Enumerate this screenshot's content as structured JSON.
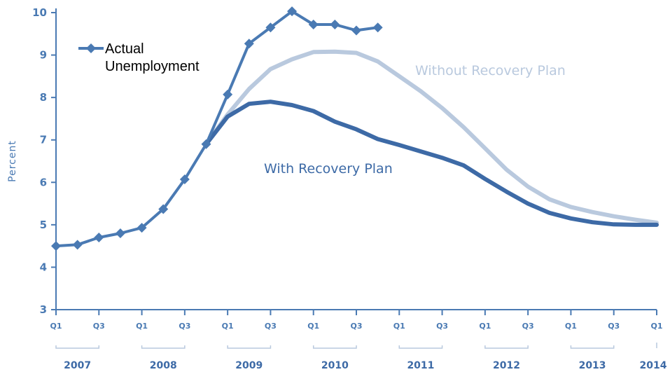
{
  "chart_data": {
    "type": "line",
    "ylabel": "Percent",
    "xlabel": "",
    "ylim": [
      3,
      10
    ],
    "yticks": [
      3,
      4,
      5,
      6,
      7,
      8,
      9,
      10
    ],
    "grid": false,
    "quarter_ticks": [
      "Q1",
      "Q3",
      "Q1",
      "Q3",
      "Q1",
      "Q3",
      "Q1",
      "Q3",
      "Q1",
      "Q3",
      "Q1",
      "Q3",
      "Q1",
      "Q3",
      "Q1"
    ],
    "years": [
      "2007",
      "2008",
      "2009",
      "2010",
      "2011",
      "2012",
      "2013",
      "2014"
    ],
    "legend": {
      "label_line1": "Actual",
      "label_line2": "Unemployment",
      "position": "top-left"
    },
    "annotations": {
      "without": "Without Recovery Plan",
      "with": "With Recovery Plan"
    },
    "series": [
      {
        "name": "Actual Unemployment",
        "color": "#4a7ab3",
        "marker": "diamond",
        "x": [
          2007.0,
          2007.25,
          2007.5,
          2007.75,
          2008.0,
          2008.25,
          2008.5,
          2008.75,
          2009.0,
          2009.25,
          2009.5,
          2009.75,
          2010.0,
          2010.25,
          2010.5,
          2010.75
        ],
        "values": [
          4.5,
          4.53,
          4.7,
          4.8,
          4.93,
          5.37,
          6.07,
          6.9,
          8.07,
          9.27,
          9.65,
          10.03,
          9.72,
          9.72,
          9.58,
          9.65
        ]
      },
      {
        "name": "Without Recovery Plan",
        "color": "#b9c9de",
        "x": [
          2008.75,
          2009.0,
          2009.25,
          2009.5,
          2009.75,
          2010.0,
          2010.25,
          2010.5,
          2010.75,
          2011.0,
          2011.25,
          2011.5,
          2011.75,
          2012.0,
          2012.25,
          2012.5,
          2012.75,
          2013.0,
          2013.25,
          2013.5,
          2013.75,
          2014.0
        ],
        "values": [
          6.9,
          7.6,
          8.2,
          8.67,
          8.9,
          9.07,
          9.08,
          9.05,
          8.85,
          8.5,
          8.15,
          7.75,
          7.3,
          6.8,
          6.3,
          5.9,
          5.6,
          5.42,
          5.3,
          5.2,
          5.12,
          5.05
        ]
      },
      {
        "name": "With Recovery Plan",
        "color": "#3d6aa6",
        "x": [
          2008.75,
          2009.0,
          2009.25,
          2009.5,
          2009.75,
          2010.0,
          2010.25,
          2010.5,
          2010.75,
          2011.0,
          2011.25,
          2011.5,
          2011.75,
          2012.0,
          2012.25,
          2012.5,
          2012.75,
          2013.0,
          2013.25,
          2013.5,
          2013.75,
          2014.0
        ],
        "values": [
          6.9,
          7.55,
          7.85,
          7.9,
          7.82,
          7.68,
          7.43,
          7.25,
          7.02,
          6.88,
          6.73,
          6.58,
          6.4,
          6.08,
          5.78,
          5.5,
          5.28,
          5.15,
          5.06,
          5.01,
          5.0,
          5.0
        ]
      }
    ]
  }
}
